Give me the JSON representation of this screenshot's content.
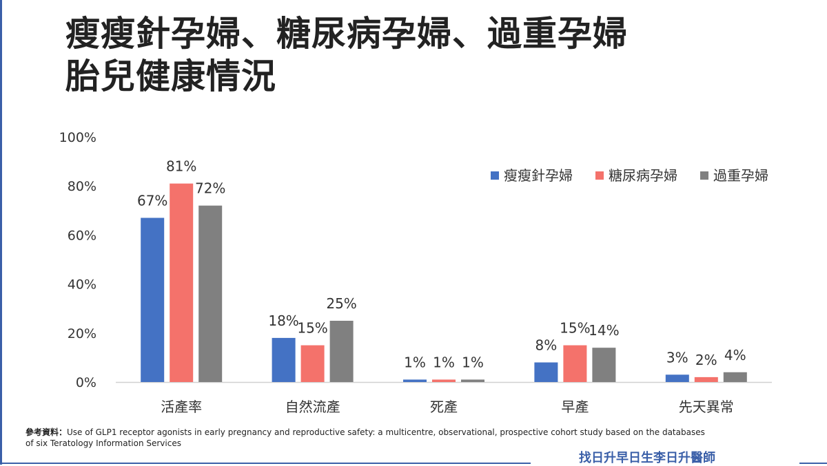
{
  "title_lines": [
    "瘦瘦針孕婦、糖尿病孕婦、過重孕婦",
    "胎兒健康情況"
  ],
  "chart_data": {
    "type": "bar",
    "categories": [
      "活產率",
      "自然流產",
      "死產",
      "早產",
      "先天異常"
    ],
    "series": [
      {
        "name": "瘦瘦針孕婦",
        "values": [
          67,
          18,
          1,
          8,
          3
        ],
        "labels": [
          "67%",
          "18%",
          "1%",
          "8%",
          "3%"
        ],
        "color": "#4472c4"
      },
      {
        "name": "糖尿病孕婦",
        "values": [
          81,
          15,
          1,
          15,
          2
        ],
        "labels": [
          "81%",
          "15%",
          "1%",
          "15%",
          "2%"
        ],
        "color": "#f4726b"
      },
      {
        "name": "過重孕婦",
        "values": [
          72,
          25,
          1,
          14,
          4
        ],
        "labels": [
          "72%",
          "25%",
          "1%",
          "14%",
          "4%"
        ],
        "color": "#808080"
      }
    ],
    "ylim": [
      0,
      100
    ],
    "yticks": [
      "0%",
      "20%",
      "40%",
      "60%",
      "80%",
      "100%"
    ],
    "legend_position": "top-right",
    "grid": false
  },
  "reference": {
    "label": "參考資料：",
    "text": "Use of GLP1 receptor agonists in early pregnancy and reproductive safety: a multicentre, observational, prospective cohort study based on the databases of six Teratology Information Services"
  },
  "brand": "找日升早日生李日升醫師",
  "colors": {
    "accent": "#3a5fa8"
  }
}
